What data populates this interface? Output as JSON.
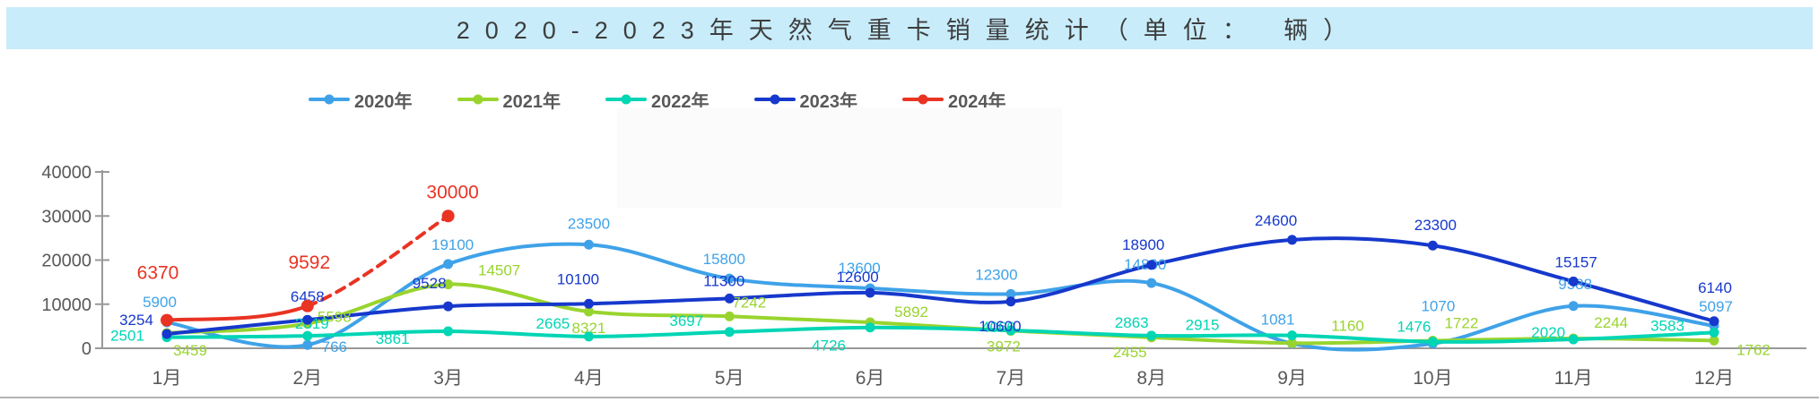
{
  "title_bar": {
    "text": "2020-2023年天然气重卡销量统计（单位： 辆）"
  },
  "chart_data": {
    "type": "line",
    "title": "2020-2023年天然气重卡销量统计（单位：辆）",
    "categories": [
      "1月",
      "2月",
      "3月",
      "4月",
      "5月",
      "6月",
      "7月",
      "8月",
      "9月",
      "10月",
      "11月",
      "12月"
    ],
    "xlabel": "",
    "ylabel": "",
    "ylim": [
      0,
      40000
    ],
    "yticks": [
      0,
      10000,
      20000,
      30000,
      40000
    ],
    "ytick_labels": [
      "0",
      "10000",
      "20000",
      "30000",
      "40000"
    ],
    "grid": false,
    "legend_position": "top",
    "axis_color": "#999999",
    "tick_text_color": "#595959",
    "series": [
      {
        "name": "2020年",
        "color": "#3fa2e8",
        "values": [
          5900,
          766,
          19100,
          23500,
          15800,
          13600,
          12300,
          14800,
          1081,
          1070,
          9588,
          5097
        ]
      },
      {
        "name": "2021年",
        "color": "#99d42e",
        "values": [
          3459,
          5598,
          14507,
          8321,
          7242,
          5892,
          3972,
          2455,
          1160,
          1722,
          2244,
          1762
        ]
      },
      {
        "name": "2022年",
        "color": "#00d5b4",
        "values": [
          2501,
          2819,
          3861,
          2665,
          3697,
          4726,
          4060,
          2863,
          2915,
          1476,
          2020,
          3583
        ]
      },
      {
        "name": "2023年",
        "color": "#1638cc",
        "values": [
          3254,
          6458,
          9528,
          10100,
          11300,
          12600,
          10600,
          18900,
          24600,
          23300,
          15157,
          6140
        ]
      },
      {
        "name": "2024年",
        "color": "#e93323",
        "values": [
          6370,
          9592,
          30000
        ],
        "dashed_from": 1
      }
    ]
  }
}
